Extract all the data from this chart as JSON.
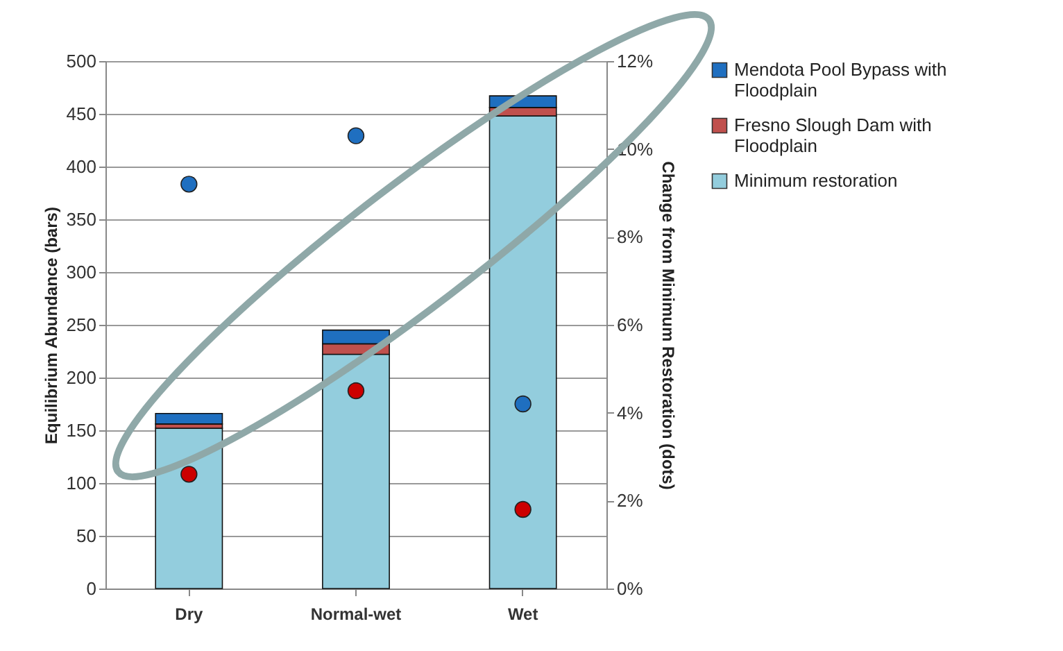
{
  "chart_data": {
    "type": "bar",
    "stacked": true,
    "ylabel": "Equilibrium Abundance (bars)",
    "y2label": "Change from Minimum Restoration (dots)",
    "categories": [
      "Dry",
      "Normal-wet",
      "Wet"
    ],
    "series": [
      {
        "name": "Minimum restoration",
        "color": "#93cddd",
        "values": [
          152,
          222,
          448
        ]
      },
      {
        "name": "Fresno Slough Dam with Floodplain",
        "color": "#c0504d",
        "values": [
          4,
          10,
          8
        ]
      },
      {
        "name": "Mendota Pool Bypass with Floodplain",
        "color": "#1f6fc0",
        "values": [
          10,
          13,
          11
        ]
      },
      {
        "type": "scatter",
        "axis": "y2",
        "color": "#1f6fc0",
        "x": [
          "Dry",
          "Normal-wet",
          "Wet"
        ],
        "values": [
          9.2,
          10.3,
          4.2
        ]
      },
      {
        "type": "scatter",
        "axis": "y2",
        "color": "#cc0000",
        "x": [
          "Dry",
          "Normal-wet",
          "Wet"
        ],
        "values": [
          2.6,
          4.5,
          1.8
        ]
      }
    ],
    "ylim": [
      0,
      500
    ],
    "yticks": [
      0,
      50,
      100,
      150,
      200,
      250,
      300,
      350,
      400,
      450,
      500
    ],
    "y2lim": [
      0,
      12
    ],
    "y2ticks": [
      {
        "value": 0,
        "label": "0%"
      },
      {
        "value": 2,
        "label": "2%"
      },
      {
        "value": 4,
        "label": "4%"
      },
      {
        "value": 6,
        "label": "6%"
      },
      {
        "value": 8,
        "label": "8%"
      },
      {
        "value": 10,
        "label": "10%"
      },
      {
        "value": 12,
        "label": "12%"
      }
    ],
    "grid": "y",
    "legend": "right",
    "marker": "circle"
  }
}
